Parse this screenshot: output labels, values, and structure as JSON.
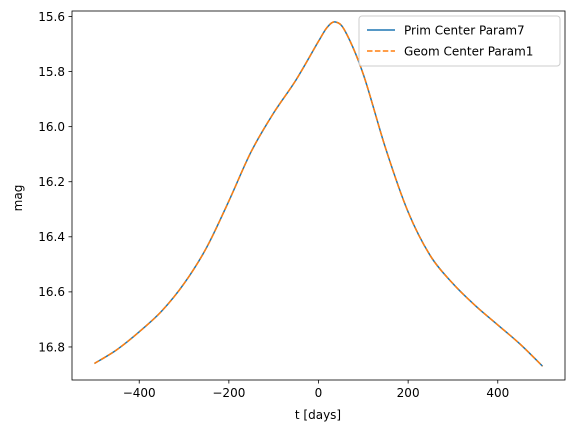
{
  "chart_data": {
    "type": "line",
    "title": "",
    "xlabel": "t [days]",
    "ylabel": "mag",
    "xlim": [
      -550,
      550
    ],
    "ylim": [
      16.92,
      15.58
    ],
    "y_inverted": true,
    "grid": false,
    "legend_position": "upper right",
    "x_ticks": [
      -400,
      -200,
      0,
      200,
      400
    ],
    "x_tick_labels": [
      "−400",
      "−200",
      "0",
      "200",
      "400"
    ],
    "y_ticks": [
      15.6,
      15.8,
      16.0,
      16.2,
      16.4,
      16.6,
      16.8
    ],
    "y_tick_labels": [
      "15.6",
      "15.8",
      "16.0",
      "16.2",
      "16.4",
      "16.6",
      "16.8"
    ],
    "x": [
      -500,
      -450,
      -400,
      -350,
      -300,
      -250,
      -200,
      -150,
      -100,
      -50,
      0,
      20,
      38,
      60,
      100,
      150,
      200,
      250,
      300,
      350,
      400,
      450,
      500
    ],
    "series": [
      {
        "name": "Prim Center Param7",
        "color": "#1f77b4",
        "linestyle": "solid",
        "values": [
          16.86,
          16.81,
          16.745,
          16.67,
          16.57,
          16.44,
          16.27,
          16.09,
          15.95,
          15.83,
          15.69,
          15.638,
          15.62,
          15.655,
          15.81,
          16.08,
          16.31,
          16.47,
          16.57,
          16.65,
          16.72,
          16.79,
          16.87
        ]
      },
      {
        "name": "Geom Center Param1",
        "color": "#ff7f0e",
        "linestyle": "dashed",
        "values": [
          16.86,
          16.81,
          16.745,
          16.67,
          16.57,
          16.44,
          16.27,
          16.09,
          15.95,
          15.83,
          15.69,
          15.638,
          15.62,
          15.655,
          15.81,
          16.08,
          16.31,
          16.47,
          16.57,
          16.65,
          16.72,
          16.79,
          16.87
        ]
      }
    ]
  }
}
